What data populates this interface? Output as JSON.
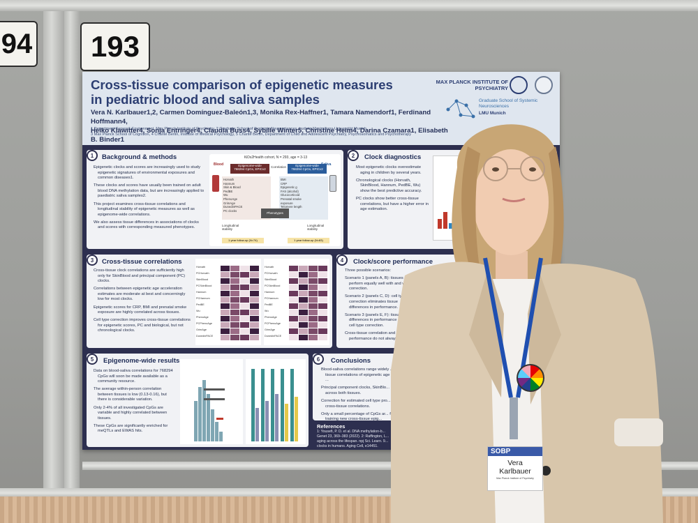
{
  "booth_numbers": {
    "left_partial": "94",
    "main": "193"
  },
  "poster": {
    "title_line1": "Cross-tissue comparison of epigenetic measures",
    "title_line2": "in pediatric blood and saliva samples",
    "authors_line1": "Vera N. Karlbauer1,2, Carmen Domínguez-Baleón1,3, Monika Rex-Haffner1, Tamara Namendorf1, Ferdinand Hoffmann4,",
    "authors_line2": "Heiko Klawitter4, Sonja Entringer4, Claudia Buss4, Sybille Winter5, Christine Heim4, Darina Czamara1, Elisabeth B. Binder1",
    "affiliations_line1": "1 Department Genes & Environment, Max Planck Institute of Psychiatry, 2 Graduate School of Systemic Neurosciences, Ludwig-Maximilians-Universität Munich,",
    "affiliations_line2": "3 Max Planck School of Cognition, 4 Charité Berlin, Institute of Medical Psychology, 5 Charité Berlin, Department of Child and Adolescent Psychiatry, Psychosomatics and Psychotherapy",
    "institute": "MAX PLANCK INSTITUTE OF PSYCHIATRY",
    "graduate_school": "Graduate School of Systemic Neurosciences",
    "lmu": "LMU Munich",
    "sections": [
      {
        "num": "1",
        "title": "Background & methods",
        "bullets": [
          "Epigenetic clocks and scores are increasingly used to study epigenetic signatures of environmental exposures and common diseases1.",
          "These clocks and scores have usually been trained on adult blood DNA methylation data, but are increasingly applied to paediatric saliva samples2.",
          "This project examines cross-tissue correlations and longitudinal stability of epigenetic measures as well as epigenome-wide correlations.",
          "We also assess tissue differences in associations of clocks and scores with corresponding measured phenotypes."
        ]
      },
      {
        "num": "2",
        "title": "Clock diagnostics",
        "bullets": [
          "Most epigenetic clocks overestimate aging in children by several years.",
          "Chronological clocks (Horvath, SkinBlood, Hannum, PedBE, Wu) show the best predictive accuracy.",
          "PC clocks show better cross-tissue correlations, but have a higher error in age estimation."
        ]
      },
      {
        "num": "3",
        "title": "Cross-tissue correlations",
        "bullets": [
          "Cross-tissue clock correlations are sufficiently high only for SkinBlood and principal component (PC) clocks.",
          "Correlations between epigenetic age acceleration estimates are moderate at best and concerningly low for most clocks.",
          "Epigenetic scores for CRP, BMI and prenatal smoke exposure are highly correlated across tissues.",
          "Cell type correction improves cross-tissue correlations for epigenetic scores, PC and biological, but not chronological clocks."
        ]
      },
      {
        "num": "4",
        "title": "Clock/score performance",
        "intro": "Three possible scenarios:",
        "bullets": [
          "Scenario 1 (panels A, B): tissues perform equally well with and without correction.",
          "Scenario 2 (panels C, D): cell type correction eliminates tissue differences in performance.",
          "Scenario 3 (panels E, F): tissue differences in performance even after cell type correction.",
          "Cross-tissue correlation and performance do not always..."
        ]
      },
      {
        "num": "5",
        "title": "Epigenome-wide results",
        "bullets": [
          "Data on blood-saliva correlations for 768294 CpGs will soon be made available as a community resource.",
          "The average within-person correlation between tissues is low (0.13-0.16), but there is considerable variation.",
          "Only 2-4% of all investigated CpGs are variable and highly correlated between tissues.",
          "These CpGs are significantly enriched for meQTLs and EWAS hits."
        ]
      },
      {
        "num": "6",
        "title": "Conclusions",
        "bullets": [
          "Blood-saliva correlations range widely ... tissue correlations of epigenetic age and ...",
          "Principal component clocks, SkinBlo... across both tissues.",
          "Correction for estimated cell type pro... cross-tissue correlations.",
          "Only a small percentage of CpGs ar... for training new cross-tissue epig..."
        ]
      }
    ],
    "references_title": "References",
    "references": [
      "1: Yousefi, P. D. et al. DNA methylation-b...",
      "Genet 23, 369–383 (2022). 2: Raffington, L...",
      "aging across the lifespan. npj Sci. Learn. 9...",
      "clocks in humans. Aging Cell, e14451."
    ],
    "cohort_label": "KiDs2Health cohort, N = 293, age = 3-13",
    "diagram": {
      "blood_label": "Blood",
      "saliva_label": "Saliva",
      "blood_box_title": "Epigenome-wide",
      "blood_box_sub": "768294 CpGs, EPICv2",
      "saliva_box_title": "Epigenome-wide",
      "saliva_box_sub": "768294 CpGs, EPICv2",
      "correlation_label": "Correlation",
      "phenotypes_label": "Phenotypes",
      "longitudinal_label": "Longitudinal stability",
      "followup_left": "1 year follow-up (N=74)",
      "followup_right": "1 year follow-up (N=83)",
      "clock_list": [
        "Horvath",
        "Hannum",
        "Skin & Blood",
        "PedBE",
        "Wu",
        "PhenoAge",
        "GrimAge",
        "DunedinPACE",
        "PC clocks"
      ],
      "score_list": [
        "BMI",
        "CRP",
        "Epigenetic g",
        "FAS (alcohol)",
        "Glucocorticoid",
        "Prenatal smoke",
        "exposure",
        "Telomere length"
      ]
    },
    "heatmap_rows": [
      "Horvath",
      "PCHorvath",
      "SkinBlood",
      "PCSkinBlood",
      "Hannum",
      "PCHannum",
      "PedBE",
      "Wu",
      "PhenoAge",
      "PCPhenoAge",
      "GrimAge",
      "DunedinPACE"
    ]
  },
  "badge": {
    "org": "SOBP",
    "first_name": "Vera",
    "last_name": "Karlbauer",
    "affiliation": "Max Planck Institute of Psychiatry"
  },
  "colors": {
    "poster_navy": "#2d2f4f",
    "header_bg": "#dfe6ef",
    "title_blue": "#2c3e72",
    "lanyard_blue": "#1f4fb0",
    "blazer": "#dccbb2"
  }
}
